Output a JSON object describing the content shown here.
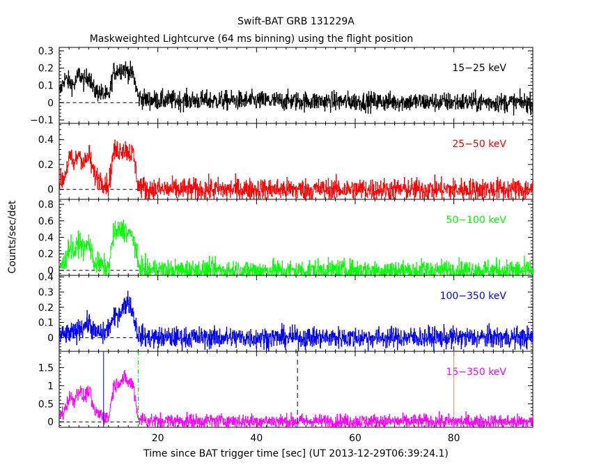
{
  "title": "Swift-BAT GRB 131229A",
  "subtitle": "Maskweighted Lightcurve (64 ms binning) using the flight position",
  "xlabel": "Time since BAT trigger time [sec] (UT 2013-12-29T06:39:24.1)",
  "ylabel": "Counts/sec/det",
  "chart_data": {
    "type": "line",
    "x_range": [
      0,
      96
    ],
    "x_ticks": [
      20,
      40,
      60,
      80
    ],
    "x_tick_labels": [
      "20",
      "40",
      "60",
      "80"
    ],
    "binning_sec": 0.064,
    "grid": false,
    "panels": [
      {
        "name": "15-25 keV",
        "label": "15−25 keV",
        "color": "#000000",
        "ylim": [
          -0.12,
          0.32
        ],
        "y_ticks": [
          -0.1,
          0,
          0.1,
          0.2,
          0.3
        ],
        "y_tick_labels": [
          "−0.1",
          "0",
          "0.1",
          "0.2",
          "0.3"
        ],
        "profile": [
          [
            0,
            0.05
          ],
          [
            1,
            0.14
          ],
          [
            3,
            0.1
          ],
          [
            4,
            0.17
          ],
          [
            5,
            0.12
          ],
          [
            6,
            0.16
          ],
          [
            7,
            0.07
          ],
          [
            9,
            0.05
          ],
          [
            10,
            0.03
          ],
          [
            11,
            0.18
          ],
          [
            13,
            0.2
          ],
          [
            15,
            0.16
          ],
          [
            16,
            0.03
          ],
          [
            18,
            0.015
          ],
          [
            96,
            0.0
          ]
        ],
        "noise": 0.028
      },
      {
        "name": "25-50 keV",
        "label": "25−50 keV",
        "color": "#ff0000",
        "ylim": [
          -0.08,
          0.53
        ],
        "y_ticks": [
          0,
          0.2,
          0.4
        ],
        "y_tick_labels": [
          "0",
          "0.2",
          "0.4"
        ],
        "profile": [
          [
            0,
            0.05
          ],
          [
            1,
            0.1
          ],
          [
            2,
            0.25
          ],
          [
            3,
            0.2
          ],
          [
            4,
            0.3
          ],
          [
            5,
            0.2
          ],
          [
            6,
            0.28
          ],
          [
            7,
            0.12
          ],
          [
            9,
            0.06
          ],
          [
            10,
            0.03
          ],
          [
            11,
            0.3
          ],
          [
            13,
            0.33
          ],
          [
            15,
            0.28
          ],
          [
            16,
            0.03
          ],
          [
            18,
            0.0
          ],
          [
            96,
            0.0
          ]
        ],
        "noise": 0.045
      },
      {
        "name": "50-100 keV",
        "label": "50−100 keV",
        "color": "#00ff00",
        "ylim": [
          -0.06,
          0.86
        ],
        "y_ticks": [
          0,
          0.2,
          0.4,
          0.6,
          0.8
        ],
        "y_tick_labels": [
          "0",
          "0.2",
          "0.4",
          "0.6",
          "0.8"
        ],
        "profile": [
          [
            0,
            0.05
          ],
          [
            1,
            0.08
          ],
          [
            2,
            0.3
          ],
          [
            3,
            0.22
          ],
          [
            4,
            0.35
          ],
          [
            5,
            0.25
          ],
          [
            6,
            0.35
          ],
          [
            7,
            0.1
          ],
          [
            9,
            0.05
          ],
          [
            10,
            0.03
          ],
          [
            11,
            0.45
          ],
          [
            13,
            0.5
          ],
          [
            15,
            0.4
          ],
          [
            16,
            0.05
          ],
          [
            18,
            0.0
          ],
          [
            96,
            0.0
          ]
        ],
        "noise": 0.065
      },
      {
        "name": "100-350 keV",
        "label": "100−350 keV",
        "color": "#0000ff",
        "ylim": [
          -0.09,
          0.41
        ],
        "y_ticks": [
          0,
          0.1,
          0.2,
          0.3,
          0.4
        ],
        "y_tick_labels": [
          "0",
          "0.1",
          "0.2",
          "0.3",
          "0.4"
        ],
        "profile": [
          [
            0,
            0.01
          ],
          [
            3,
            0.03
          ],
          [
            5,
            0.08
          ],
          [
            6,
            0.1
          ],
          [
            7,
            0.04
          ],
          [
            9,
            0.02
          ],
          [
            11,
            0.12
          ],
          [
            13,
            0.2
          ],
          [
            14,
            0.25
          ],
          [
            15,
            0.15
          ],
          [
            16,
            0.02
          ],
          [
            18,
            0.0
          ],
          [
            96,
            0.0
          ]
        ],
        "noise": 0.035
      },
      {
        "name": "15-350 keV",
        "label": "15−350 keV",
        "color": "#ff00ff",
        "ylim": [
          -0.15,
          1.95
        ],
        "y_ticks": [
          0,
          0.5,
          1,
          1.5
        ],
        "y_tick_labels": [
          "0",
          "0.5",
          "1",
          "1.5"
        ],
        "profile": [
          [
            0,
            0.15
          ],
          [
            1,
            0.3
          ],
          [
            2,
            0.7
          ],
          [
            3,
            0.6
          ],
          [
            4,
            0.9
          ],
          [
            5,
            0.65
          ],
          [
            6,
            0.9
          ],
          [
            7,
            0.3
          ],
          [
            9,
            0.15
          ],
          [
            10,
            0.1
          ],
          [
            11,
            1.0
          ],
          [
            13,
            1.2
          ],
          [
            15,
            1.0
          ],
          [
            16,
            0.1
          ],
          [
            18,
            0.03
          ],
          [
            96,
            0.0
          ]
        ],
        "noise": 0.1
      }
    ],
    "markers": [
      {
        "x": 9.0,
        "color": "#0000aa",
        "style": "solid"
      },
      {
        "x": 16.0,
        "color": "#00cc00",
        "style": "dashdot"
      },
      {
        "x": 48.3,
        "color": "#000000",
        "style": "dashed"
      },
      {
        "x": 80.0,
        "color": "#ff8800",
        "style": "solid"
      }
    ]
  }
}
